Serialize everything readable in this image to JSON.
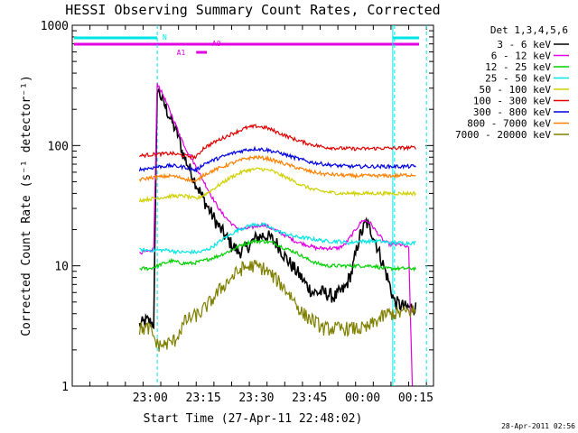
{
  "chart_data": {
    "type": "line",
    "title": "HESSI Observing Summary Count Rates, Corrected",
    "xlabel": "Start Time (27-Apr-11 22:48:02)",
    "ylabel": "Corrected Count Rate (s⁻¹ detector⁻¹)",
    "ylog": true,
    "ylim": [
      1,
      1000
    ],
    "xlim_minutes": [
      -10,
      92
    ],
    "xticks": [
      {
        "t": 12,
        "label": "23:00"
      },
      {
        "t": 27,
        "label": "23:15"
      },
      {
        "t": 42,
        "label": "23:30"
      },
      {
        "t": 57,
        "label": "23:45"
      },
      {
        "t": 72,
        "label": "00:00"
      },
      {
        "t": 87,
        "label": "00:15"
      }
    ],
    "yticks": [
      {
        "v": 1,
        "label": "1"
      },
      {
        "v": 10,
        "label": "10"
      },
      {
        "v": 100,
        "label": "100"
      },
      {
        "v": 1000,
        "label": "1000"
      }
    ],
    "legend_title": "Det 1,3,4,5,6",
    "legend_position": "right",
    "timestamp": "28-Apr-2011 02:56",
    "markers": [
      {
        "label": "N",
        "color": "#00e5e5"
      },
      {
        "label": "A0",
        "color": "#e000e0"
      },
      {
        "label": "A1",
        "color": "#e000e0"
      }
    ],
    "series": [
      {
        "name": "3 - 6 keV",
        "color": "#000000",
        "points": [
          [
            9,
            3.2
          ],
          [
            11,
            3.5
          ],
          [
            13,
            3.3
          ],
          [
            14,
            300
          ],
          [
            16,
            220
          ],
          [
            18,
            160
          ],
          [
            20,
            120
          ],
          [
            21,
            90
          ],
          [
            23,
            65
          ],
          [
            25,
            48
          ],
          [
            27,
            36
          ],
          [
            29,
            28
          ],
          [
            31,
            22
          ],
          [
            33,
            18
          ],
          [
            35,
            15
          ],
          [
            37,
            13
          ],
          [
            39,
            14
          ],
          [
            42,
            17
          ],
          [
            44,
            18
          ],
          [
            46,
            17
          ],
          [
            48,
            15
          ],
          [
            50,
            12
          ],
          [
            52,
            10
          ],
          [
            54,
            8.5
          ],
          [
            56,
            7
          ],
          [
            58,
            6
          ],
          [
            61,
            6
          ],
          [
            64,
            5.5
          ],
          [
            67,
            6.5
          ],
          [
            69,
            9
          ],
          [
            71,
            17
          ],
          [
            73,
            23
          ],
          [
            75,
            18
          ],
          [
            77,
            12
          ],
          [
            79,
            8
          ],
          [
            81,
            5
          ],
          [
            84,
            4.5
          ],
          [
            87,
            4.5
          ]
        ]
      },
      {
        "name": "6 - 12 keV",
        "color": "#e000e0",
        "points": [
          [
            9,
            13
          ],
          [
            12,
            13
          ],
          [
            13,
            14
          ],
          [
            14,
            330
          ],
          [
            16,
            250
          ],
          [
            18,
            180
          ],
          [
            20,
            130
          ],
          [
            22,
            95
          ],
          [
            24,
            75
          ],
          [
            26,
            58
          ],
          [
            28,
            45
          ],
          [
            30,
            35
          ],
          [
            32,
            28
          ],
          [
            34,
            24
          ],
          [
            36,
            21
          ],
          [
            38,
            20
          ],
          [
            41,
            21
          ],
          [
            44,
            22
          ],
          [
            47,
            20
          ],
          [
            50,
            18
          ],
          [
            53,
            16
          ],
          [
            56,
            15
          ],
          [
            59,
            14
          ],
          [
            62,
            14
          ],
          [
            65,
            14
          ],
          [
            67,
            15
          ],
          [
            70,
            20
          ],
          [
            72,
            24
          ],
          [
            74,
            23
          ],
          [
            76,
            19
          ],
          [
            78,
            16
          ],
          [
            80,
            15
          ],
          [
            83,
            15
          ],
          [
            85,
            14
          ],
          [
            86,
            1
          ]
        ]
      },
      {
        "name": "12 - 25 keV",
        "color": "#00d000",
        "points": [
          [
            9,
            9.5
          ],
          [
            12,
            9.5
          ],
          [
            14,
            10
          ],
          [
            16,
            10.5
          ],
          [
            18,
            11
          ],
          [
            21,
            10.5
          ],
          [
            24,
            10.5
          ],
          [
            27,
            11
          ],
          [
            31,
            12
          ],
          [
            35,
            13.5
          ],
          [
            38,
            15
          ],
          [
            41,
            16
          ],
          [
            44,
            16
          ],
          [
            47,
            15.5
          ],
          [
            50,
            14
          ],
          [
            53,
            13
          ],
          [
            56,
            11.5
          ],
          [
            59,
            10.5
          ],
          [
            62,
            10
          ],
          [
            66,
            10
          ],
          [
            69,
            10
          ],
          [
            72,
            10
          ],
          [
            75,
            10
          ],
          [
            78,
            9.5
          ],
          [
            81,
            9.5
          ],
          [
            84,
            9.5
          ],
          [
            87,
            9.5
          ]
        ]
      },
      {
        "name": "25 - 50 keV",
        "color": "#00e5e5",
        "points": [
          [
            9,
            13.5
          ],
          [
            12,
            13.5
          ],
          [
            14,
            13.5
          ],
          [
            17,
            13.5
          ],
          [
            20,
            13
          ],
          [
            23,
            13
          ],
          [
            26,
            13
          ],
          [
            29,
            14
          ],
          [
            33,
            17
          ],
          [
            37,
            20
          ],
          [
            41,
            22
          ],
          [
            44,
            22
          ],
          [
            47,
            20
          ],
          [
            50,
            18.5
          ],
          [
            53,
            17.5
          ],
          [
            56,
            17
          ],
          [
            59,
            16.5
          ],
          [
            62,
            16
          ],
          [
            65,
            16
          ],
          [
            68,
            15.5
          ],
          [
            71,
            16
          ],
          [
            74,
            16
          ],
          [
            77,
            16
          ],
          [
            80,
            15.5
          ],
          [
            83,
            15.5
          ],
          [
            86,
            15.5
          ],
          [
            87,
            15.5
          ]
        ]
      },
      {
        "name": "50 - 100 keV",
        "color": "#d0d000",
        "points": [
          [
            9,
            35
          ],
          [
            12,
            36
          ],
          [
            15,
            37
          ],
          [
            18,
            38
          ],
          [
            22,
            38
          ],
          [
            25,
            36
          ],
          [
            28,
            40
          ],
          [
            31,
            46
          ],
          [
            35,
            55
          ],
          [
            39,
            62
          ],
          [
            43,
            64
          ],
          [
            46,
            62
          ],
          [
            50,
            55
          ],
          [
            54,
            48
          ],
          [
            58,
            43
          ],
          [
            62,
            41
          ],
          [
            66,
            40
          ],
          [
            70,
            40
          ],
          [
            74,
            40
          ],
          [
            78,
            40
          ],
          [
            82,
            40
          ],
          [
            86,
            40
          ],
          [
            87,
            40
          ]
        ]
      },
      {
        "name": "100 - 300 keV",
        "color": "#e00000",
        "points": [
          [
            9,
            82
          ],
          [
            12,
            84
          ],
          [
            15,
            85
          ],
          [
            18,
            86
          ],
          [
            22,
            82
          ],
          [
            25,
            80
          ],
          [
            27,
            95
          ],
          [
            31,
            110
          ],
          [
            35,
            125
          ],
          [
            39,
            140
          ],
          [
            42,
            145
          ],
          [
            45,
            140
          ],
          [
            49,
            125
          ],
          [
            53,
            112
          ],
          [
            57,
            103
          ],
          [
            61,
            97
          ],
          [
            65,
            95
          ],
          [
            69,
            94
          ],
          [
            73,
            94
          ],
          [
            77,
            95
          ],
          [
            81,
            95
          ],
          [
            85,
            96
          ],
          [
            87,
            96
          ]
        ]
      },
      {
        "name": "300 - 800 keV",
        "color": "#0000e0",
        "points": [
          [
            9,
            63
          ],
          [
            12,
            65
          ],
          [
            15,
            67
          ],
          [
            18,
            68
          ],
          [
            22,
            66
          ],
          [
            25,
            62
          ],
          [
            27,
            70
          ],
          [
            31,
            78
          ],
          [
            35,
            86
          ],
          [
            39,
            92
          ],
          [
            42,
            94
          ],
          [
            45,
            92
          ],
          [
            49,
            86
          ],
          [
            53,
            79
          ],
          [
            57,
            73
          ],
          [
            61,
            70
          ],
          [
            65,
            68
          ],
          [
            69,
            67
          ],
          [
            73,
            67
          ],
          [
            77,
            67
          ],
          [
            81,
            67
          ],
          [
            85,
            67
          ],
          [
            87,
            67
          ]
        ]
      },
      {
        "name": "800 - 7000 keV",
        "color": "#ff8000",
        "points": [
          [
            9,
            52
          ],
          [
            12,
            54
          ],
          [
            15,
            55
          ],
          [
            18,
            56
          ],
          [
            22,
            53
          ],
          [
            25,
            50
          ],
          [
            27,
            57
          ],
          [
            31,
            64
          ],
          [
            35,
            71
          ],
          [
            39,
            78
          ],
          [
            42,
            80
          ],
          [
            45,
            78
          ],
          [
            49,
            72
          ],
          [
            53,
            66
          ],
          [
            57,
            61
          ],
          [
            61,
            58
          ],
          [
            65,
            57
          ],
          [
            69,
            56
          ],
          [
            73,
            56
          ],
          [
            77,
            56
          ],
          [
            81,
            56
          ],
          [
            85,
            57
          ],
          [
            87,
            57
          ]
        ]
      },
      {
        "name": "7000 - 20000 keV",
        "color": "#808000",
        "points": [
          [
            9,
            3
          ],
          [
            12,
            3
          ],
          [
            14,
            2.2
          ],
          [
            16,
            2.2
          ],
          [
            19,
            2.4
          ],
          [
            22,
            3.5
          ],
          [
            26,
            4
          ],
          [
            29,
            5
          ],
          [
            32,
            6.5
          ],
          [
            35,
            8
          ],
          [
            38,
            9.5
          ],
          [
            41,
            10
          ],
          [
            44,
            9.5
          ],
          [
            46,
            8.5
          ],
          [
            49,
            7
          ],
          [
            52,
            5.5
          ],
          [
            55,
            4
          ],
          [
            58,
            3.5
          ],
          [
            61,
            3
          ],
          [
            64,
            3
          ],
          [
            67,
            3
          ],
          [
            70,
            3
          ],
          [
            73,
            3
          ],
          [
            76,
            3.5
          ],
          [
            79,
            4
          ],
          [
            82,
            4
          ],
          [
            85,
            4.2
          ],
          [
            87,
            4.2
          ]
        ]
      }
    ]
  }
}
